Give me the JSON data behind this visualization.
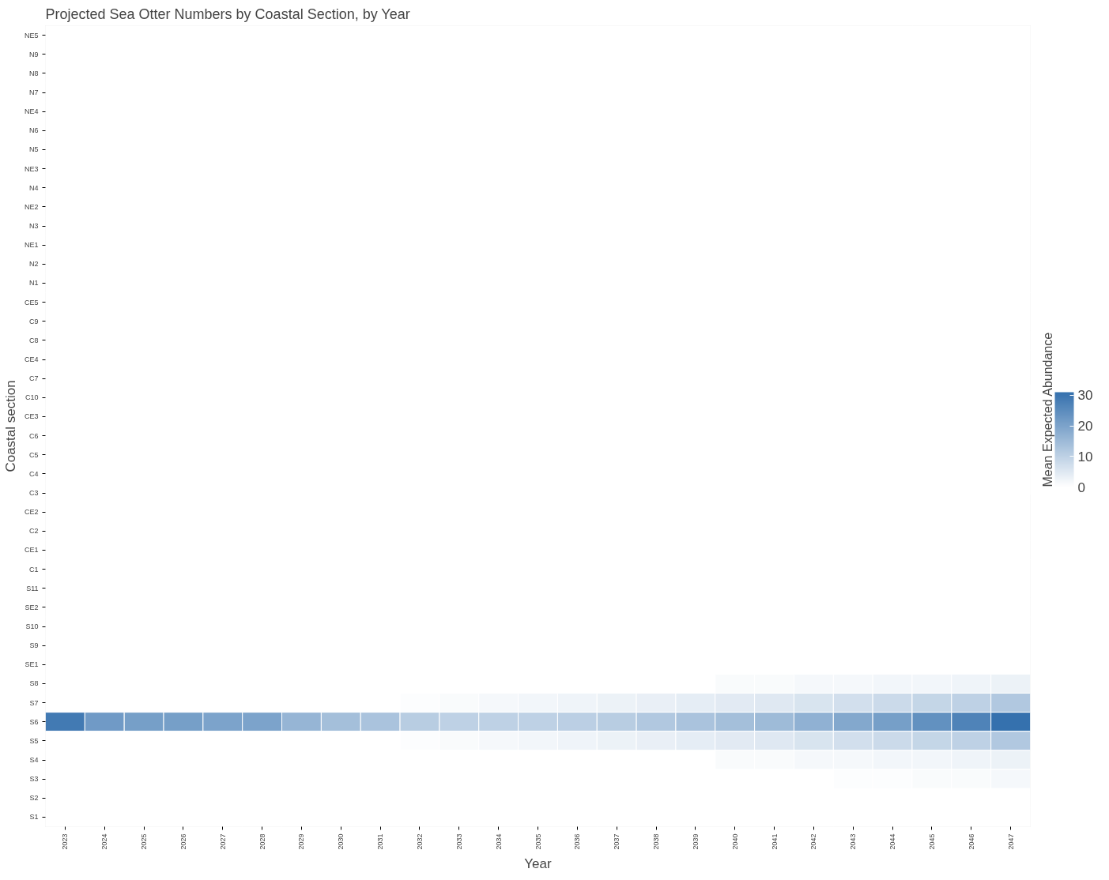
{
  "chart_data": {
    "type": "heatmap",
    "title": "Projected Sea Otter Numbers by Coastal Section, by Year",
    "xlabel": "Year",
    "ylabel": "Coastal section",
    "clabel": "Mean Expected Abundance",
    "categories": [
      "2023",
      "2024",
      "2025",
      "2026",
      "2027",
      "2028",
      "2029",
      "2030",
      "2031",
      "2032",
      "2033",
      "2034",
      "2035",
      "2036",
      "2037",
      "2038",
      "2039",
      "2040",
      "2041",
      "2042",
      "2043",
      "2044",
      "2045",
      "2046",
      "2047"
    ],
    "y_categories": [
      "NE5",
      "N9",
      "N8",
      "N7",
      "NE4",
      "N6",
      "N5",
      "NE3",
      "N4",
      "NE2",
      "N3",
      "NE1",
      "N2",
      "N1",
      "CE5",
      "C9",
      "C8",
      "CE4",
      "C7",
      "C10",
      "CE3",
      "C6",
      "C5",
      "C4",
      "C3",
      "CE2",
      "C2",
      "CE1",
      "C1",
      "S11",
      "SE2",
      "S10",
      "S9",
      "SE1",
      "S8",
      "S7",
      "S6",
      "S5",
      "S4",
      "S3",
      "S2",
      "S1"
    ],
    "clim": [
      0,
      31
    ],
    "cticks": [
      0,
      10,
      20,
      30
    ],
    "cells": [
      [
        0,
        0,
        0,
        0,
        0,
        0,
        0,
        0,
        0,
        0,
        0,
        0,
        0,
        0,
        0,
        0,
        0,
        0,
        0,
        0,
        0,
        0,
        0,
        0,
        0
      ],
      [
        0,
        0,
        0,
        0,
        0,
        0,
        0,
        0,
        0,
        0,
        0,
        0,
        0,
        0,
        0,
        0,
        0,
        0,
        0,
        0,
        0,
        0,
        0,
        0,
        0
      ],
      [
        0,
        0,
        0,
        0,
        0,
        0,
        0,
        0,
        0,
        0,
        0,
        0,
        0,
        0,
        0,
        0,
        0,
        0,
        0,
        0,
        0,
        0,
        0,
        0,
        0
      ],
      [
        0,
        0,
        0,
        0,
        0,
        0,
        0,
        0,
        0,
        0,
        0,
        0,
        0,
        0,
        0,
        0,
        0,
        0,
        0,
        0,
        0,
        0,
        0,
        0,
        0
      ],
      [
        0,
        0,
        0,
        0,
        0,
        0,
        0,
        0,
        0,
        0,
        0,
        0,
        0,
        0,
        0,
        0,
        0,
        0,
        0,
        0,
        0,
        0,
        0,
        0,
        0
      ],
      [
        0,
        0,
        0,
        0,
        0,
        0,
        0,
        0,
        0,
        0,
        0,
        0,
        0,
        0,
        0,
        0,
        0,
        0,
        0,
        0,
        0,
        0,
        0,
        0,
        0
      ],
      [
        0,
        0,
        0,
        0,
        0,
        0,
        0,
        0,
        0,
        0,
        0,
        0,
        0,
        0,
        0,
        0,
        0,
        0,
        0,
        0,
        0,
        0,
        0,
        0,
        0
      ],
      [
        0,
        0,
        0,
        0,
        0,
        0,
        0,
        0,
        0,
        0,
        0,
        0,
        0,
        0,
        0,
        0,
        0,
        0,
        0,
        0,
        0,
        0,
        0,
        0,
        0
      ],
      [
        0,
        0,
        0,
        0,
        0,
        0,
        0,
        0,
        0,
        0,
        0,
        0,
        0,
        0,
        0,
        0,
        0,
        0,
        0,
        0,
        0,
        0,
        0,
        0,
        0
      ],
      [
        0,
        0,
        0,
        0,
        0,
        0,
        0,
        0,
        0,
        0,
        0,
        0,
        0,
        0,
        0,
        0,
        0,
        0,
        0,
        0,
        0,
        0,
        0,
        0,
        0
      ],
      [
        0,
        0,
        0,
        0,
        0,
        0,
        0,
        0,
        0,
        0,
        0,
        0,
        0,
        0,
        0,
        0,
        0,
        0,
        0,
        0,
        0,
        0,
        0,
        0,
        0
      ],
      [
        0,
        0,
        0,
        0,
        0,
        0,
        0,
        0,
        0,
        0,
        0,
        0,
        0,
        0,
        0,
        0,
        0,
        0,
        0,
        0,
        0,
        0,
        0,
        0,
        0
      ],
      [
        0,
        0,
        0,
        0,
        0,
        0,
        0,
        0,
        0,
        0,
        0,
        0,
        0,
        0,
        0,
        0,
        0,
        0,
        0,
        0,
        0,
        0,
        0,
        0,
        0
      ],
      [
        0,
        0,
        0,
        0,
        0,
        0,
        0,
        0,
        0,
        0,
        0,
        0,
        0,
        0,
        0,
        0,
        0,
        0,
        0,
        0,
        0,
        0,
        0,
        0,
        0
      ],
      [
        0,
        0,
        0,
        0,
        0,
        0,
        0,
        0,
        0,
        0,
        0,
        0,
        0,
        0,
        0,
        0,
        0,
        0,
        0,
        0,
        0,
        0,
        0,
        0,
        0
      ],
      [
        0,
        0,
        0,
        0,
        0,
        0,
        0,
        0,
        0,
        0,
        0,
        0,
        0,
        0,
        0,
        0,
        0,
        0,
        0,
        0,
        0,
        0,
        0,
        0,
        0
      ],
      [
        0,
        0,
        0,
        0,
        0,
        0,
        0,
        0,
        0,
        0,
        0,
        0,
        0,
        0,
        0,
        0,
        0,
        0,
        0,
        0,
        0,
        0,
        0,
        0,
        0
      ],
      [
        0,
        0,
        0,
        0,
        0,
        0,
        0,
        0,
        0,
        0,
        0,
        0,
        0,
        0,
        0,
        0,
        0,
        0,
        0,
        0,
        0,
        0,
        0,
        0,
        0
      ],
      [
        0,
        0,
        0,
        0,
        0,
        0,
        0,
        0,
        0,
        0,
        0,
        0,
        0,
        0,
        0,
        0,
        0,
        0,
        0,
        0,
        0,
        0,
        0,
        0,
        0
      ],
      [
        0,
        0,
        0,
        0,
        0,
        0,
        0,
        0,
        0,
        0,
        0,
        0,
        0,
        0,
        0,
        0,
        0,
        0,
        0,
        0,
        0,
        0,
        0,
        0,
        0
      ],
      [
        0,
        0,
        0,
        0,
        0,
        0,
        0,
        0,
        0,
        0,
        0,
        0,
        0,
        0,
        0,
        0,
        0,
        0,
        0,
        0,
        0,
        0,
        0,
        0,
        0
      ],
      [
        0,
        0,
        0,
        0,
        0,
        0,
        0,
        0,
        0,
        0,
        0,
        0,
        0,
        0,
        0,
        0,
        0,
        0,
        0,
        0,
        0,
        0,
        0,
        0,
        0
      ],
      [
        0,
        0,
        0,
        0,
        0,
        0,
        0,
        0,
        0,
        0,
        0,
        0,
        0,
        0,
        0,
        0,
        0,
        0,
        0,
        0,
        0,
        0,
        0,
        0,
        0
      ],
      [
        0,
        0,
        0,
        0,
        0,
        0,
        0,
        0,
        0,
        0,
        0,
        0,
        0,
        0,
        0,
        0,
        0,
        0,
        0,
        0,
        0,
        0,
        0,
        0,
        0
      ],
      [
        0,
        0,
        0,
        0,
        0,
        0,
        0,
        0,
        0,
        0,
        0,
        0,
        0,
        0,
        0,
        0,
        0,
        0,
        0,
        0,
        0,
        0,
        0,
        0,
        0
      ],
      [
        0,
        0,
        0,
        0,
        0,
        0,
        0,
        0,
        0,
        0,
        0,
        0,
        0,
        0,
        0,
        0,
        0,
        0,
        0,
        0,
        0,
        0,
        0,
        0,
        0
      ],
      [
        0,
        0,
        0,
        0,
        0,
        0,
        0,
        0,
        0,
        0,
        0,
        0,
        0,
        0,
        0,
        0,
        0,
        0,
        0,
        0,
        0,
        0,
        0,
        0,
        0
      ],
      [
        0,
        0,
        0,
        0,
        0,
        0,
        0,
        0,
        0,
        0,
        0,
        0,
        0,
        0,
        0,
        0,
        0,
        0,
        0,
        0,
        0,
        0,
        0,
        0,
        0
      ],
      [
        0,
        0,
        0,
        0,
        0,
        0,
        0,
        0,
        0,
        0,
        0,
        0,
        0,
        0,
        0,
        0,
        0,
        0,
        0,
        0,
        0,
        0,
        0,
        0,
        0
      ],
      [
        0,
        0,
        0,
        0,
        0,
        0,
        0,
        0,
        0,
        0,
        0,
        0,
        0,
        0,
        0,
        0,
        0,
        0,
        0,
        0,
        0,
        0,
        0,
        0,
        0
      ],
      [
        0,
        0,
        0,
        0,
        0,
        0,
        0,
        0,
        0,
        0,
        0,
        0,
        0,
        0,
        0,
        0,
        0,
        0,
        0,
        0,
        0,
        0,
        0,
        0,
        0
      ],
      [
        0,
        0,
        0,
        0,
        0,
        0,
        0,
        0,
        0,
        0,
        0,
        0,
        0,
        0,
        0,
        0,
        0,
        0,
        0,
        0,
        0,
        0,
        0,
        0,
        0
      ],
      [
        0,
        0,
        0,
        0,
        0,
        0,
        0,
        0,
        0,
        0,
        0,
        0,
        0,
        0,
        0,
        0,
        0,
        0,
        0,
        0,
        0,
        0,
        0,
        0,
        0
      ],
      [
        0,
        0,
        0,
        0,
        0,
        0,
        0,
        0,
        0,
        0,
        0,
        0,
        0,
        0,
        0,
        0,
        0,
        0,
        0,
        0,
        0,
        0,
        0,
        0,
        0
      ],
      [
        0,
        0,
        0,
        0,
        0,
        0,
        0,
        0,
        0,
        0,
        0,
        0,
        0,
        0,
        0,
        0,
        0,
        1,
        1,
        1.5,
        1.5,
        2,
        2,
        2.5,
        3
      ],
      [
        0,
        0,
        0,
        0,
        0,
        0,
        0,
        0,
        0,
        0.5,
        1,
        1.5,
        2,
        2.5,
        3,
        3.5,
        4,
        4.5,
        5,
        6,
        7,
        8,
        9,
        10,
        12
      ],
      [
        29,
        22,
        21,
        21,
        20,
        20,
        16,
        14,
        13,
        11,
        10,
        10,
        10,
        10.5,
        11,
        12,
        13,
        14,
        15,
        17,
        19,
        21,
        24,
        27,
        31
      ],
      [
        0,
        0,
        0,
        0,
        0,
        0,
        0,
        0,
        0,
        0.5,
        1,
        1.5,
        2,
        2.5,
        3,
        3.5,
        4,
        4.5,
        5,
        6,
        7,
        8,
        9,
        10,
        12
      ],
      [
        0,
        0,
        0,
        0,
        0,
        0,
        0,
        0,
        0,
        0,
        0,
        0,
        0,
        0,
        0,
        0,
        0,
        1,
        1,
        1.5,
        1.5,
        2,
        2,
        2.5,
        3
      ],
      [
        0,
        0,
        0,
        0,
        0,
        0,
        0,
        0,
        0,
        0,
        0,
        0,
        0,
        0,
        0,
        0,
        0,
        0,
        0,
        0,
        0.5,
        0.5,
        1,
        1,
        1.5
      ],
      [
        0,
        0,
        0,
        0,
        0,
        0,
        0,
        0,
        0,
        0,
        0,
        0,
        0,
        0,
        0,
        0,
        0,
        0,
        0,
        0,
        0,
        0,
        0,
        0,
        0
      ],
      [
        0,
        0,
        0,
        0,
        0,
        0,
        0,
        0,
        0,
        0,
        0,
        0,
        0,
        0,
        0,
        0,
        0,
        0,
        0,
        0,
        0,
        0,
        0,
        0,
        0
      ]
    ]
  }
}
